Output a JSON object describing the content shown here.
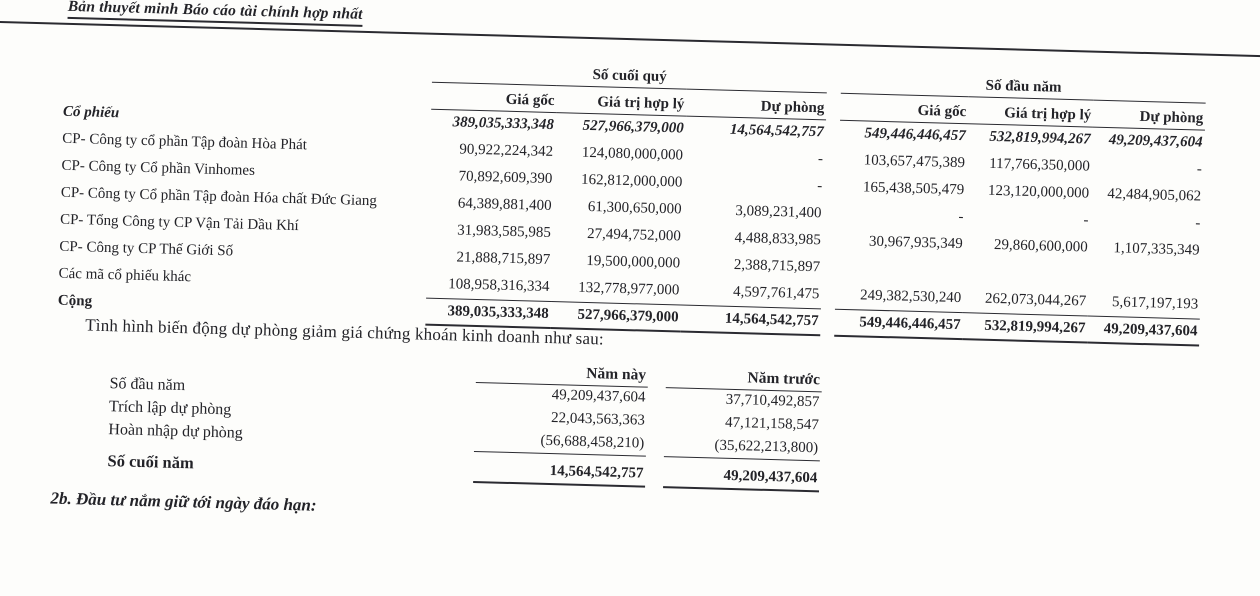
{
  "page": {
    "header_title": "Bản thuyết minh Báo cáo tài chính hợp nhất",
    "section_intro": "Tình hình biến động dự phòng giảm giá chứng khoán kinh doanh như sau:",
    "footer_heading": "2b. Đầu tư nắm giữ tới ngày đáo hạn:"
  },
  "stocks_table": {
    "group_headers": {
      "end_of_quarter": "Số cuối quý",
      "beginning_of_year": "Số đầu năm"
    },
    "sub_headers": {
      "cost": "Giá gốc",
      "fair_value": "Giá trị hợp lý",
      "provision": "Dự phòng"
    },
    "rows": [
      {
        "label": "Cổ phiếu",
        "style": "total",
        "values": [
          "389,035,333,348",
          "527,966,379,000",
          "14,564,542,757",
          "549,446,446,457",
          "532,819,994,267",
          "49,209,437,604"
        ]
      },
      {
        "label": "CP- Công ty cổ phần Tập đoàn Hòa Phát",
        "style": "normal",
        "values": [
          "90,922,224,342",
          "124,080,000,000",
          "-",
          "103,657,475,389",
          "117,766,350,000",
          "-"
        ]
      },
      {
        "label": "CP- Công ty Cổ phần Vinhomes",
        "style": "normal",
        "values": [
          "70,892,609,390",
          "162,812,000,000",
          "-",
          "165,438,505,479",
          "123,120,000,000",
          "42,484,905,062"
        ]
      },
      {
        "label": "CP- Công ty Cổ phần Tập đoàn Hóa chất Đức Giang",
        "style": "normal",
        "values": [
          "64,389,881,400",
          "61,300,650,000",
          "3,089,231,400",
          "-",
          "-",
          "-"
        ]
      },
      {
        "label": "CP- Tổng Công ty CP Vận Tải Dầu Khí",
        "style": "normal",
        "values": [
          "31,983,585,985",
          "27,494,752,000",
          "4,488,833,985",
          "30,967,935,349",
          "29,860,600,000",
          "1,107,335,349"
        ]
      },
      {
        "label": "CP- Công ty CP Thế Giới Số",
        "style": "normal",
        "values": [
          "21,888,715,897",
          "19,500,000,000",
          "2,388,715,897",
          "",
          "",
          ""
        ]
      },
      {
        "label": "Các mã cổ phiếu khác",
        "style": "normal",
        "values": [
          "108,958,316,334",
          "132,778,977,000",
          "4,597,761,475",
          "249,382,530,240",
          "262,073,044,267",
          "5,617,197,193"
        ]
      },
      {
        "label": "Cộng",
        "style": "grand",
        "values": [
          "389,035,333,348",
          "527,966,379,000",
          "14,564,542,757",
          "549,446,446,457",
          "532,819,994,267",
          "49,209,437,604"
        ]
      }
    ]
  },
  "provision_table": {
    "col_headers": [
      "Năm này",
      "Năm trước"
    ],
    "rows": [
      {
        "label": "Số đầu năm",
        "style": "normal",
        "values": [
          "49,209,437,604",
          "37,710,492,857"
        ]
      },
      {
        "label": "Trích lập dự phòng",
        "style": "normal",
        "values": [
          "22,043,563,363",
          "47,121,158,547"
        ]
      },
      {
        "label": "Hoàn nhập dự phòng",
        "style": "normal",
        "values": [
          "(56,688,458,210)",
          "(35,622,213,800)"
        ]
      },
      {
        "label": "Số cuối năm",
        "style": "grand",
        "values": [
          "14,564,542,757",
          "49,209,437,604"
        ]
      }
    ]
  }
}
